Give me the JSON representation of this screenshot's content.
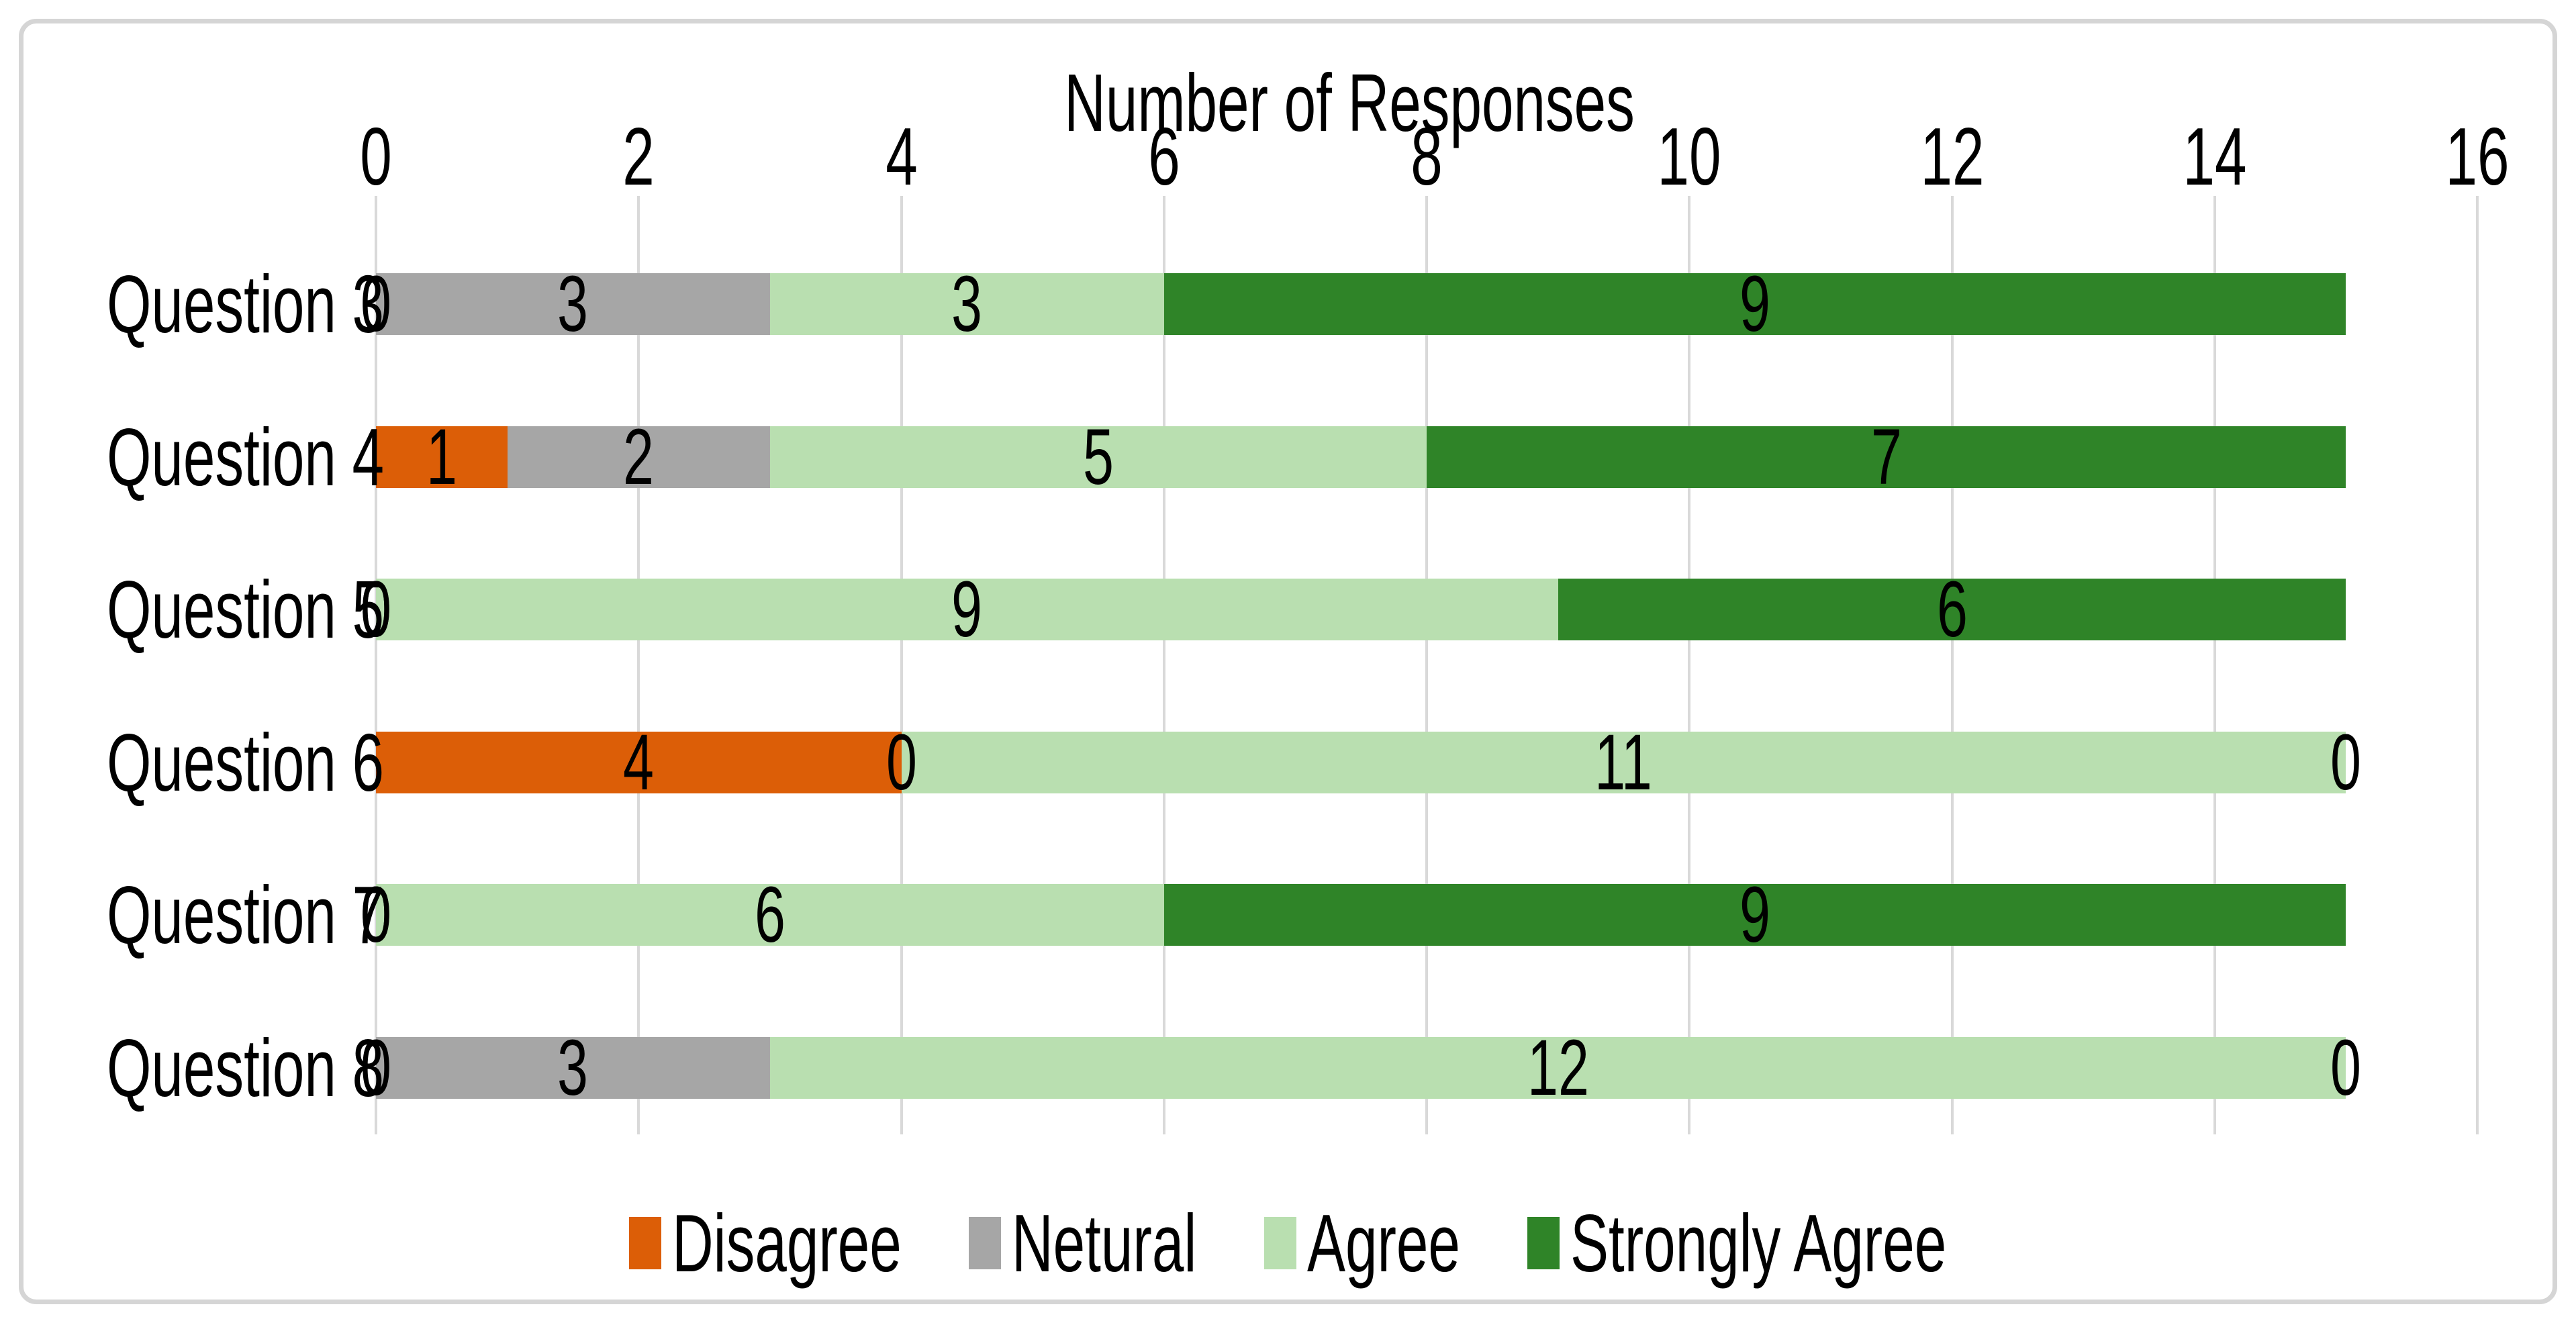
{
  "figure": {
    "background": "#ffffff",
    "border_color": "#d5d5d5"
  },
  "chart_data": {
    "type": "bar",
    "orientation": "horizontal",
    "stacked": true,
    "axis_title": "Number of Responses",
    "categories": [
      "Question 3",
      "Question 4",
      "Question 5",
      "Question 6",
      "Question 7",
      "Question 8"
    ],
    "series": [
      {
        "name": "Disagree",
        "color": "#dc5e07",
        "values": [
          0,
          1,
          0,
          4,
          0,
          0
        ]
      },
      {
        "name": "Netural",
        "color": "#a6a6a6",
        "values": [
          3,
          2,
          0,
          0,
          0,
          3
        ]
      },
      {
        "name": "Agree",
        "color": "#b9dfb0",
        "values": [
          3,
          5,
          9,
          11,
          6,
          12
        ]
      },
      {
        "name": "Strongly Agree",
        "color": "#2f8428",
        "values": [
          9,
          7,
          6,
          0,
          9,
          0
        ]
      }
    ],
    "x_axis": {
      "position": "top",
      "min": 0,
      "max": 16,
      "tick_interval": 2,
      "tick_labels": [
        "0",
        "2",
        "4",
        "6",
        "8",
        "10",
        "12",
        "14",
        "16"
      ]
    },
    "gridlines": {
      "visible": true,
      "direction": "vertical",
      "color": "#d9d9d9"
    },
    "data_labels": {
      "visible": true,
      "color": "#000000"
    },
    "legend": {
      "position": "bottom",
      "items": [
        "Disagree",
        "Netural",
        "Agree",
        "Strongly Agree"
      ]
    }
  }
}
